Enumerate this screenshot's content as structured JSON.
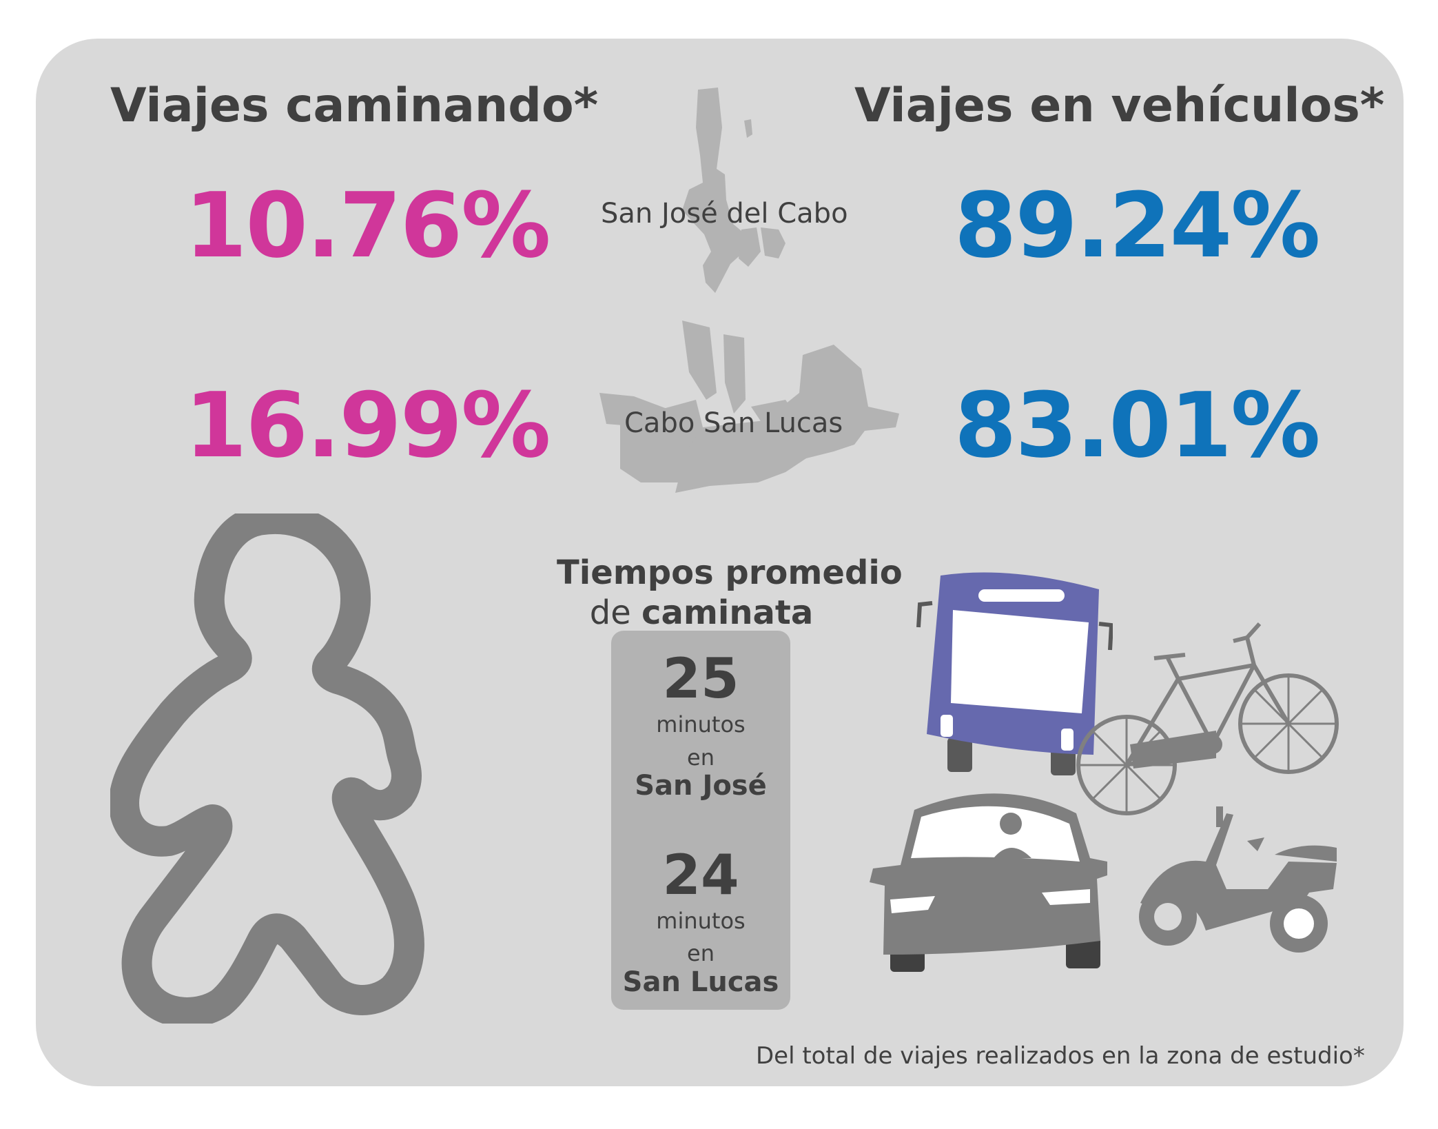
{
  "walking": {
    "title": "Viajes caminando*",
    "san_jose_pct": "10.76%",
    "san_lucas_pct": "16.99%",
    "color": "#d0369a"
  },
  "vehicles": {
    "title": "Viajes en vehículos*",
    "san_jose_pct": "89.24%",
    "san_lucas_pct": "83.01%",
    "color": "#0f73ba"
  },
  "cities": {
    "san_jose": "San José del Cabo",
    "san_lucas": "Cabo San Lucas"
  },
  "walk_times": {
    "title_line1": "Tiempos promedio",
    "title_line2_prefix": "de ",
    "title_line2_bold": "caminata",
    "san_jose_minutes": "25",
    "san_jose_unit": "minutos",
    "san_jose_prep": "en",
    "san_jose_place": "San José",
    "san_lucas_minutes": "24",
    "san_lucas_unit": "minutos",
    "san_lucas_prep": "en",
    "san_lucas_place": "San Lucas"
  },
  "footnote": "Del total de viajes realizados en la zona de estudio*",
  "icons": [
    "pedestrian-icon",
    "bus-icon",
    "bicycle-icon",
    "car-icon",
    "scooter-icon",
    "san-jose-map-icon",
    "san-lucas-map-icon"
  ]
}
